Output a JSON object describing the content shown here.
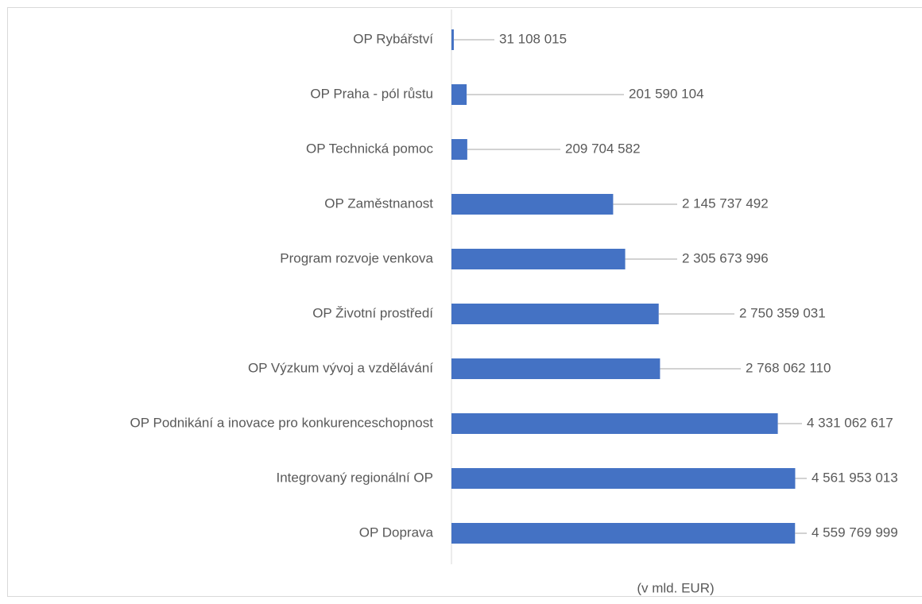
{
  "chart_data": {
    "type": "bar",
    "orientation": "horizontal",
    "x_axis_label": "(v mld. EUR)",
    "categories": [
      "OP Rybářství",
      "OP Praha - pól růstu",
      "OP Technická pomoc",
      "OP Zaměstnanost",
      "Program rozvoje venkova",
      "OP Životní prostředí",
      "OP Výzkum vývoj a vzdělávání",
      "OP Podnikání a inovace pro konkurenceschopnost",
      "Integrovaný regionální OP",
      "OP Doprava"
    ],
    "values": [
      31108015,
      201590104,
      209704582,
      2145737492,
      2305673996,
      2750359031,
      2768062110,
      4331062617,
      4561953013,
      4559769999
    ],
    "value_labels": [
      "31 108 015",
      "201 590 104",
      "209 704 582",
      "2 145 737 492",
      "2 305 673 996",
      "2 750 359 031",
      "2 768 062 110",
      "4 331 062 617",
      "4 561 953 013",
      "4 559 769 999"
    ],
    "color": "#4472c4",
    "xlim": [
      0,
      5000000000
    ]
  }
}
